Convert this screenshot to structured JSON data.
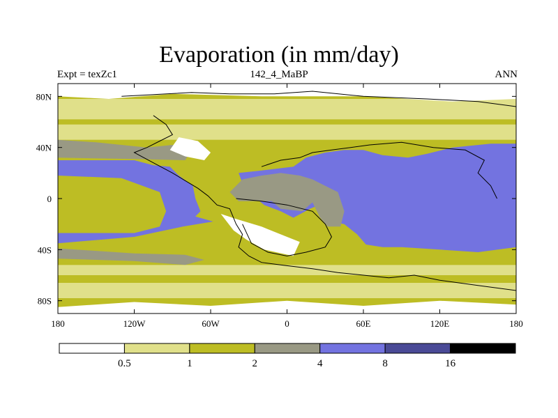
{
  "title": "Evaporation (in mm/day)",
  "subtitle_left": "Expt = texZc1",
  "subtitle_center": "142_4_MaBP",
  "subtitle_right": "ANN",
  "chart_data": {
    "type": "heatmap",
    "title": "Evaporation (in mm/day)",
    "projection": "cylindrical equidistant",
    "x_range": [
      -180,
      180
    ],
    "y_range": [
      -90,
      90
    ],
    "x_ticks": [
      {
        "value": -180,
        "label": "180"
      },
      {
        "value": -120,
        "label": "120W"
      },
      {
        "value": -60,
        "label": "60W"
      },
      {
        "value": 0,
        "label": "0"
      },
      {
        "value": 60,
        "label": "60E"
      },
      {
        "value": 120,
        "label": "120E"
      },
      {
        "value": 180,
        "label": "180"
      }
    ],
    "y_ticks": [
      {
        "value": 80,
        "label": "80N"
      },
      {
        "value": 40,
        "label": "40N"
      },
      {
        "value": 0,
        "label": "0"
      },
      {
        "value": -40,
        "label": "40S"
      },
      {
        "value": -80,
        "label": "80S"
      }
    ],
    "colorbar": {
      "levels": [
        0.5,
        1,
        2,
        4,
        8,
        16
      ],
      "labels": [
        "0.5",
        "1",
        "2",
        "4",
        "8",
        "16"
      ],
      "colors": [
        "#ffffff",
        "#e0e08a",
        "#bdbd24",
        "#999984",
        "#7373e0",
        "#4a4a96",
        "#000000"
      ]
    },
    "regions": [
      {
        "name": "tropical-ocean",
        "category": "4-8",
        "color": "#7373e0",
        "outline": [
          [
            -180,
            30
          ],
          [
            -120,
            30
          ],
          [
            -105,
            26
          ],
          [
            -92,
            25
          ],
          [
            -85,
            18
          ],
          [
            -74,
            10
          ],
          [
            -72,
            0
          ],
          [
            -68,
            -10
          ],
          [
            -72,
            -14
          ],
          [
            -58,
            -18
          ],
          [
            -82,
            -22
          ],
          [
            -120,
            -30
          ],
          [
            -180,
            -35
          ],
          [
            -180,
            -27
          ],
          [
            -120,
            -27
          ],
          [
            -100,
            -22
          ],
          [
            -95,
            -10
          ],
          [
            -100,
            5
          ],
          [
            -130,
            16
          ],
          [
            -180,
            18
          ]
        ]
      },
      {
        "name": "indian-pacific-warm",
        "category": "4-8",
        "color": "#7373e0",
        "outline": [
          [
            -38,
            20
          ],
          [
            -20,
            22
          ],
          [
            5,
            25
          ],
          [
            15,
            32
          ],
          [
            30,
            36
          ],
          [
            45,
            38
          ],
          [
            60,
            38
          ],
          [
            75,
            34
          ],
          [
            95,
            32
          ],
          [
            110,
            35
          ],
          [
            130,
            40
          ],
          [
            160,
            43
          ],
          [
            180,
            43
          ],
          [
            180,
            -38
          ],
          [
            150,
            -42
          ],
          [
            120,
            -40
          ],
          [
            90,
            -38
          ],
          [
            75,
            -38
          ],
          [
            62,
            -36
          ],
          [
            55,
            -28
          ],
          [
            45,
            -20
          ],
          [
            35,
            -18
          ],
          [
            30,
            -10
          ],
          [
            25,
            -5
          ],
          [
            18,
            -8
          ],
          [
            5,
            -15
          ],
          [
            -5,
            -10
          ],
          [
            -18,
            -5
          ],
          [
            -30,
            5
          ],
          [
            -35,
            12
          ]
        ]
      },
      {
        "name": "central-land",
        "category": "2-4",
        "color": "#999984",
        "outline": [
          [
            -45,
            5
          ],
          [
            -38,
            -2
          ],
          [
            -12,
            -2
          ],
          [
            -5,
            -8
          ],
          [
            12,
            -10
          ],
          [
            20,
            -3
          ],
          [
            26,
            -15
          ],
          [
            32,
            -22
          ],
          [
            42,
            -22
          ],
          [
            45,
            -10
          ],
          [
            40,
            5
          ],
          [
            30,
            10
          ],
          [
            20,
            15
          ],
          [
            10,
            18
          ],
          [
            -5,
            20
          ],
          [
            -20,
            18
          ],
          [
            -35,
            15
          ]
        ]
      },
      {
        "name": "southern-band-grey",
        "category": "2-4",
        "color": "#999984",
        "outline": [
          [
            -180,
            -39
          ],
          [
            -120,
            -43
          ],
          [
            -80,
            -44
          ],
          [
            -65,
            -48
          ],
          [
            -80,
            -52
          ],
          [
            -120,
            -49
          ],
          [
            -180,
            -47
          ]
        ]
      },
      {
        "name": "northern-band-grey",
        "category": "2-4",
        "color": "#999984",
        "outline": [
          [
            -180,
            46
          ],
          [
            -150,
            44
          ],
          [
            -110,
            40
          ],
          [
            -90,
            42
          ],
          [
            -75,
            38
          ],
          [
            -80,
            30
          ],
          [
            -120,
            31
          ],
          [
            -180,
            32
          ]
        ]
      },
      {
        "name": "western-desert",
        "category": "0-0.5",
        "color": "#ffffff",
        "outline": [
          [
            -52,
            -12
          ],
          [
            -40,
            -16
          ],
          [
            -20,
            -22
          ],
          [
            0,
            -30
          ],
          [
            10,
            -34
          ],
          [
            5,
            -45
          ],
          [
            -18,
            -40
          ],
          [
            -32,
            -32
          ],
          [
            -42,
            -25
          ]
        ]
      },
      {
        "name": "northern-desert",
        "category": "0-0.5",
        "color": "#ffffff",
        "outline": [
          [
            -85,
            48
          ],
          [
            -70,
            45
          ],
          [
            -60,
            36
          ],
          [
            -65,
            30
          ],
          [
            -80,
            33
          ],
          [
            -92,
            38
          ]
        ]
      },
      {
        "name": "arctic-cap",
        "category": "0-0.5",
        "color": "#ffffff",
        "outline": [
          [
            -180,
            90
          ],
          [
            180,
            90
          ],
          [
            180,
            78
          ],
          [
            130,
            76
          ],
          [
            60,
            80
          ],
          [
            -20,
            80
          ],
          [
            -90,
            82
          ],
          [
            -140,
            78
          ],
          [
            -180,
            80
          ]
        ]
      },
      {
        "name": "antarctic-cap",
        "category": "0-0.5",
        "color": "#ffffff",
        "outline": [
          [
            -180,
            -90
          ],
          [
            180,
            -90
          ],
          [
            180,
            -83
          ],
          [
            120,
            -80
          ],
          [
            60,
            -84
          ],
          [
            0,
            -80
          ],
          [
            -60,
            -84
          ],
          [
            -120,
            -81
          ],
          [
            -180,
            -85
          ]
        ]
      }
    ],
    "coastlines": [
      [
        [
          -130,
          80
        ],
        [
          -75,
          83
        ],
        [
          -45,
          82
        ],
        [
          -10,
          82
        ],
        [
          20,
          84
        ],
        [
          60,
          80
        ],
        [
          110,
          78
        ],
        [
          150,
          76
        ],
        [
          180,
          72
        ]
      ],
      [
        [
          -105,
          65
        ],
        [
          -95,
          58
        ],
        [
          -90,
          50
        ],
        [
          -100,
          45
        ],
        [
          -110,
          40
        ],
        [
          -120,
          36
        ],
        [
          -105,
          28
        ],
        [
          -90,
          20
        ],
        [
          -80,
          14
        ],
        [
          -70,
          8
        ],
        [
          -62,
          2
        ],
        [
          -55,
          -5
        ],
        [
          -45,
          -8
        ],
        [
          -40,
          -20
        ],
        [
          -35,
          -28
        ],
        [
          -38,
          -38
        ],
        [
          -30,
          -45
        ],
        [
          -20,
          -50
        ],
        [
          -5,
          -52
        ],
        [
          20,
          -55
        ],
        [
          40,
          -58
        ],
        [
          60,
          -60
        ],
        [
          80,
          -62
        ],
        [
          100,
          -60
        ],
        [
          120,
          -64
        ],
        [
          150,
          -68
        ],
        [
          180,
          -72
        ]
      ],
      [
        [
          -20,
          25
        ],
        [
          -5,
          30
        ],
        [
          10,
          32
        ],
        [
          20,
          36
        ],
        [
          35,
          38
        ],
        [
          50,
          40
        ],
        [
          65,
          42
        ],
        [
          90,
          44
        ],
        [
          115,
          40
        ],
        [
          140,
          38
        ],
        [
          155,
          30
        ],
        [
          150,
          20
        ],
        [
          160,
          10
        ],
        [
          165,
          0
        ]
      ],
      [
        [
          -40,
          0
        ],
        [
          -20,
          -2
        ],
        [
          0,
          -5
        ],
        [
          20,
          -10
        ],
        [
          30,
          -20
        ],
        [
          35,
          -30
        ],
        [
          30,
          -38
        ],
        [
          15,
          -42
        ],
        [
          0,
          -45
        ],
        [
          -15,
          -42
        ],
        [
          -28,
          -35
        ],
        [
          -35,
          -20
        ]
      ]
    ]
  }
}
